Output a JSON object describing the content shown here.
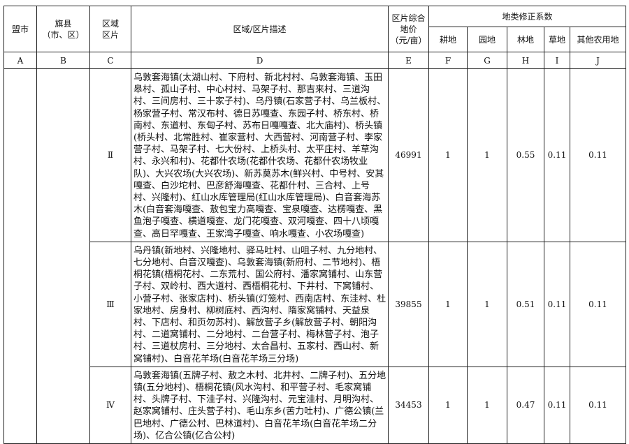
{
  "headers": {
    "league_city": "盟市",
    "county_line1": "旗县",
    "county_line2": "（市、区）",
    "zone_line1": "区域",
    "zone_line2": "区片",
    "description": "区域/区片描述",
    "price_line1": "区片综合",
    "price_line2": "地价",
    "price_line3": "（元/亩）",
    "coefficients": "地类修正系数",
    "cultivated": "耕地",
    "garden": "园地",
    "forest": "林地",
    "grass": "草地",
    "other": "其他农用地"
  },
  "letters": [
    "A",
    "B",
    "C",
    "D",
    "E",
    "F",
    "G",
    "H",
    "I",
    "J"
  ],
  "rows": [
    {
      "zone": "Ⅱ",
      "description": "乌敦套海镇(太湖山村、下府村、新北村村、乌敦套海镇、玉田皋村、孤山子村、中心村村、马架子村、那吉来村、三道沟村、三间房村、三十家子村)、乌丹镇(石家营子村、乌兰板村、杨家营子村、常汉布村、德日苏嘎查、东园子村、桥东村、桥南村、东道村、东甸子村、苏布日嘎嘎查、北大庙村)、桥头镇(桥头村、北常胜村、崔家营村、大西营村、河南营子村、李家营子村、马架子村、七大份村、上桥头村、太平庄村、羊草沟村、永兴和村)、花都什农场(花都什农场、花都什农场牧业队)、大兴农场(大兴农场)、新苏莫苏木(鲜兴村、中号村、安其嘎查、白沙坨村、巴彦舒海嘎查、花都什村、三合村、上号村、兴隆村)、红山水库管理局(红山水库管理局)、白音套海苏木(白音套海嘎查、敖包宝力高嘎查、宝泉嘎查、达楞嘎查、黑鱼泡子嘎查、横道嘎查、龙门花嘎查、双河嘎查、四十八顷嘎查、高日罕嘎查、王家湾子嘎查、响水嘎查、小农场嘎查)",
      "price": "46991",
      "cultivated": "1",
      "garden": "1",
      "forest": "0.55",
      "grass": "0.11",
      "other": "0.11"
    },
    {
      "zone": "Ⅲ",
      "description": "乌丹镇(新地村、兴隆地村、驿马吐村、山咀子村、九分地村、七分地村、白音汉嘎查)、乌敦套海镇(新府村、二节地村)、梧桐花镇(梧桐花村、二东荒村、国公府村、潘家窝铺村、山东营子村、双岭村、西大道村、西梧桐花村、下井村、下窝铺村、小营子村、张家店村)、桥头镇(灯笼村、西南店村、东洼村、杜家地村、房身村、柳树底村、西沟村、隋家窝铺村、天益泉村、下店村、和页勿苏村)、解放营子乡(解放营子村、朝阳沟村、二道窝铺村、二分地村、二台营子村、梅林营子村、泡子村、三道杖房村、三分地村、太合昌村、五家村、西山村、新窝铺村)、白音花羊场(白音花羊场三分场)",
      "price": "39855",
      "cultivated": "1",
      "garden": "1",
      "forest": "0.51",
      "grass": "0.11",
      "other": "0.11"
    },
    {
      "zone": "Ⅳ",
      "description": "乌敦套海镇(五牌子村、敖之木村、北井村、二牌子村)、五分地镇(五分地村)、梧桐花镇(风水沟村、和平营子村、毛家窝铺村、头牌子村、下洼子村、兴隆沟村、元宝洼村、月明沟村、赵家窝铺村、庄头营子村)、毛山东乡(苦力吐村)、广德公镇(兰巴地村、广德公村、巴林道村)、白音花羊场(白音花羊场二分场)、亿合公镇(亿合公村)",
      "price": "34453",
      "cultivated": "1",
      "garden": "1",
      "forest": "0.47",
      "grass": "0.11",
      "other": "0.11"
    }
  ]
}
